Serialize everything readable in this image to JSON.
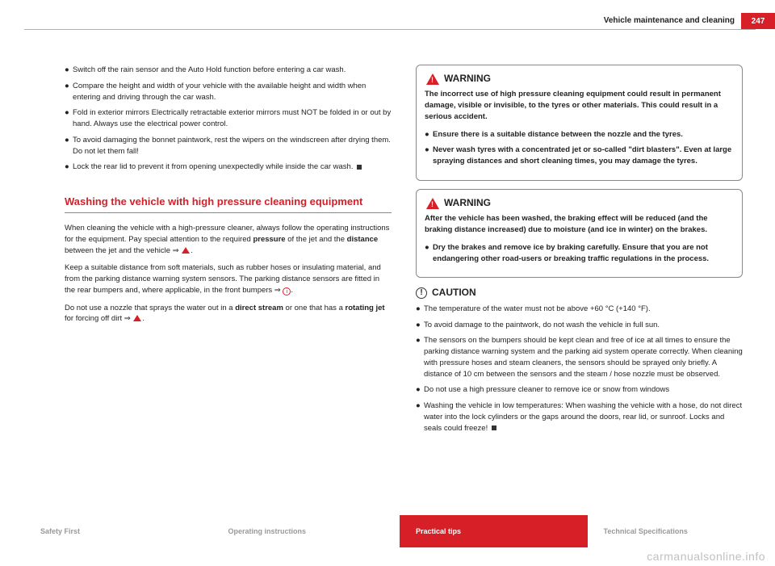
{
  "header": {
    "section_title": "Vehicle maintenance and cleaning",
    "page_number": "247"
  },
  "left_column": {
    "bullets": [
      "Switch off the rain sensor and the Auto Hold function before entering a car wash.",
      "Compare the height and width of your vehicle with the available height and width when entering and driving through the car wash.",
      "Fold in exterior mirrors Electrically retractable exterior mirrors must NOT be folded in or out by hand. Always use the electrical power control.",
      "To avoid damaging the bonnet paintwork, rest the wipers on the windscreen after drying them. Do not let them fall!",
      "Lock the rear lid to prevent it from opening unexpectedly while inside the car wash."
    ],
    "section_heading": "Washing the vehicle with high pressure cleaning equipment",
    "p1_a": "When cleaning the vehicle with a high-pressure cleaner, always follow the operating instructions for the equipment. Pay special attention to the required ",
    "p1_b": "pressure",
    "p1_c": " of the jet and the ",
    "p1_d": "distance",
    "p1_e": " between the jet and the vehicle ⇒ ",
    "p2": "Keep a suitable distance from soft materials, such as rubber hoses or insulating material, and from the parking distance warning system sensors. The parking distance sensors are fitted in the rear bumpers and, where applicable, in the front bumpers ⇒ ",
    "p3_a": "Do not use a nozzle that sprays the water out in a ",
    "p3_b": "direct stream",
    "p3_c": " or one that has a ",
    "p3_d": "rotating jet",
    "p3_e": " for forcing off dirt ⇒ "
  },
  "right_column": {
    "warning1": {
      "label": "WARNING",
      "intro": "The incorrect use of high pressure cleaning equipment could result in permanent damage, visible or invisible, to the tyres or other materials. This could result in a serious accident.",
      "bullets": [
        "Ensure there is a suitable distance between the nozzle and the tyres.",
        "Never wash tyres with a concentrated jet or so-called \"dirt blasters\". Even at large spraying distances and short cleaning times, you may damage the tyres."
      ]
    },
    "warning2": {
      "label": "WARNING",
      "intro": "After the vehicle has been washed, the braking effect will be reduced (and the braking distance increased) due to moisture (and ice in winter) on the brakes.",
      "bullets": [
        "Dry the brakes and remove ice by braking carefully. Ensure that you are not endangering other road-users or breaking traffic regulations in the process."
      ]
    },
    "caution": {
      "label": "CAUTION",
      "bullets": [
        "The temperature of the water must not be above +60 °C (+140 °F).",
        "To avoid damage to the paintwork, do not wash the vehicle in full sun.",
        "The sensors on the bumpers should be kept clean and free of ice at all times to ensure the parking distance warning system and the parking aid system operate correctly. When cleaning with pressure hoses and steam cleaners, the sensors should be sprayed only briefly. A distance of 10 cm between the sensors and the steam / hose nozzle must be observed.",
        "Do not use a high pressure cleaner to remove ice or snow from windows",
        "Washing the vehicle in low temperatures: When washing the vehicle with a hose, do not direct water into the lock cylinders or the gaps around the doors, rear lid, or sunroof. Locks and seals could freeze!"
      ]
    }
  },
  "footer": {
    "items": [
      "Safety First",
      "Operating instructions",
      "Practical tips",
      "Technical Specifications"
    ],
    "active_index": 2
  },
  "watermark": "carmanualsonline.info",
  "colors": {
    "brand_red": "#d61f26",
    "text": "#222222",
    "grey": "#999999",
    "rule": "#888888"
  }
}
